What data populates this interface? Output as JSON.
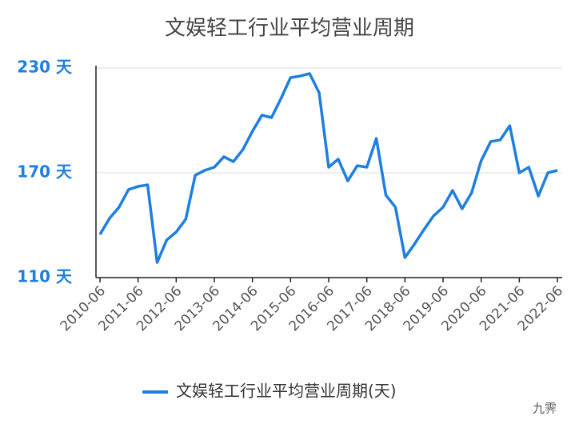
{
  "chart_data": {
    "type": "line",
    "title": "文娱轻工行业平均营业周期",
    "categories": [
      "2010-06",
      null,
      null,
      null,
      "2011-06",
      null,
      null,
      null,
      "2012-06",
      null,
      null,
      null,
      "2013-06",
      null,
      null,
      null,
      "2014-06",
      null,
      null,
      null,
      "2015-06",
      null,
      null,
      null,
      "2016-06",
      null,
      null,
      null,
      "2017-06",
      null,
      null,
      null,
      "2018-06",
      null,
      null,
      null,
      "2019-06",
      null,
      null,
      null,
      "2020-06",
      null,
      null,
      null,
      "2021-06",
      null,
      null,
      null,
      "2022-06"
    ],
    "series": [
      {
        "name": "文娱轻工行业平均营业周期(天)",
        "color": "#1f7fe0",
        "values": [
          134.7,
          143.9,
          150.3,
          160.4,
          162.2,
          163.1,
          118.7,
          131.5,
          136.1,
          143.4,
          168.6,
          171.4,
          173.2,
          179.2,
          176.4,
          183.3,
          193.8,
          203,
          201.6,
          212.6,
          224.5,
          225.4,
          226.8,
          215.8,
          173.2,
          177.8,
          165.4,
          174.1,
          173.2,
          189.7,
          157.2,
          150.3,
          121.5,
          129.2,
          137.5,
          145.3,
          150.3,
          159.9,
          149.4,
          158.6,
          176.9,
          187.9,
          188.8,
          197,
          170,
          173.2,
          156.7,
          170,
          171.4
        ]
      }
    ],
    "ylim": [
      110,
      230
    ],
    "yticks": [
      {
        "value": 110,
        "label": "110 天"
      },
      {
        "value": 170,
        "label": "170 天"
      },
      {
        "value": 230,
        "label": "230 天"
      }
    ],
    "grid": true,
    "legend": "bottom",
    "watermark": "九霁"
  }
}
